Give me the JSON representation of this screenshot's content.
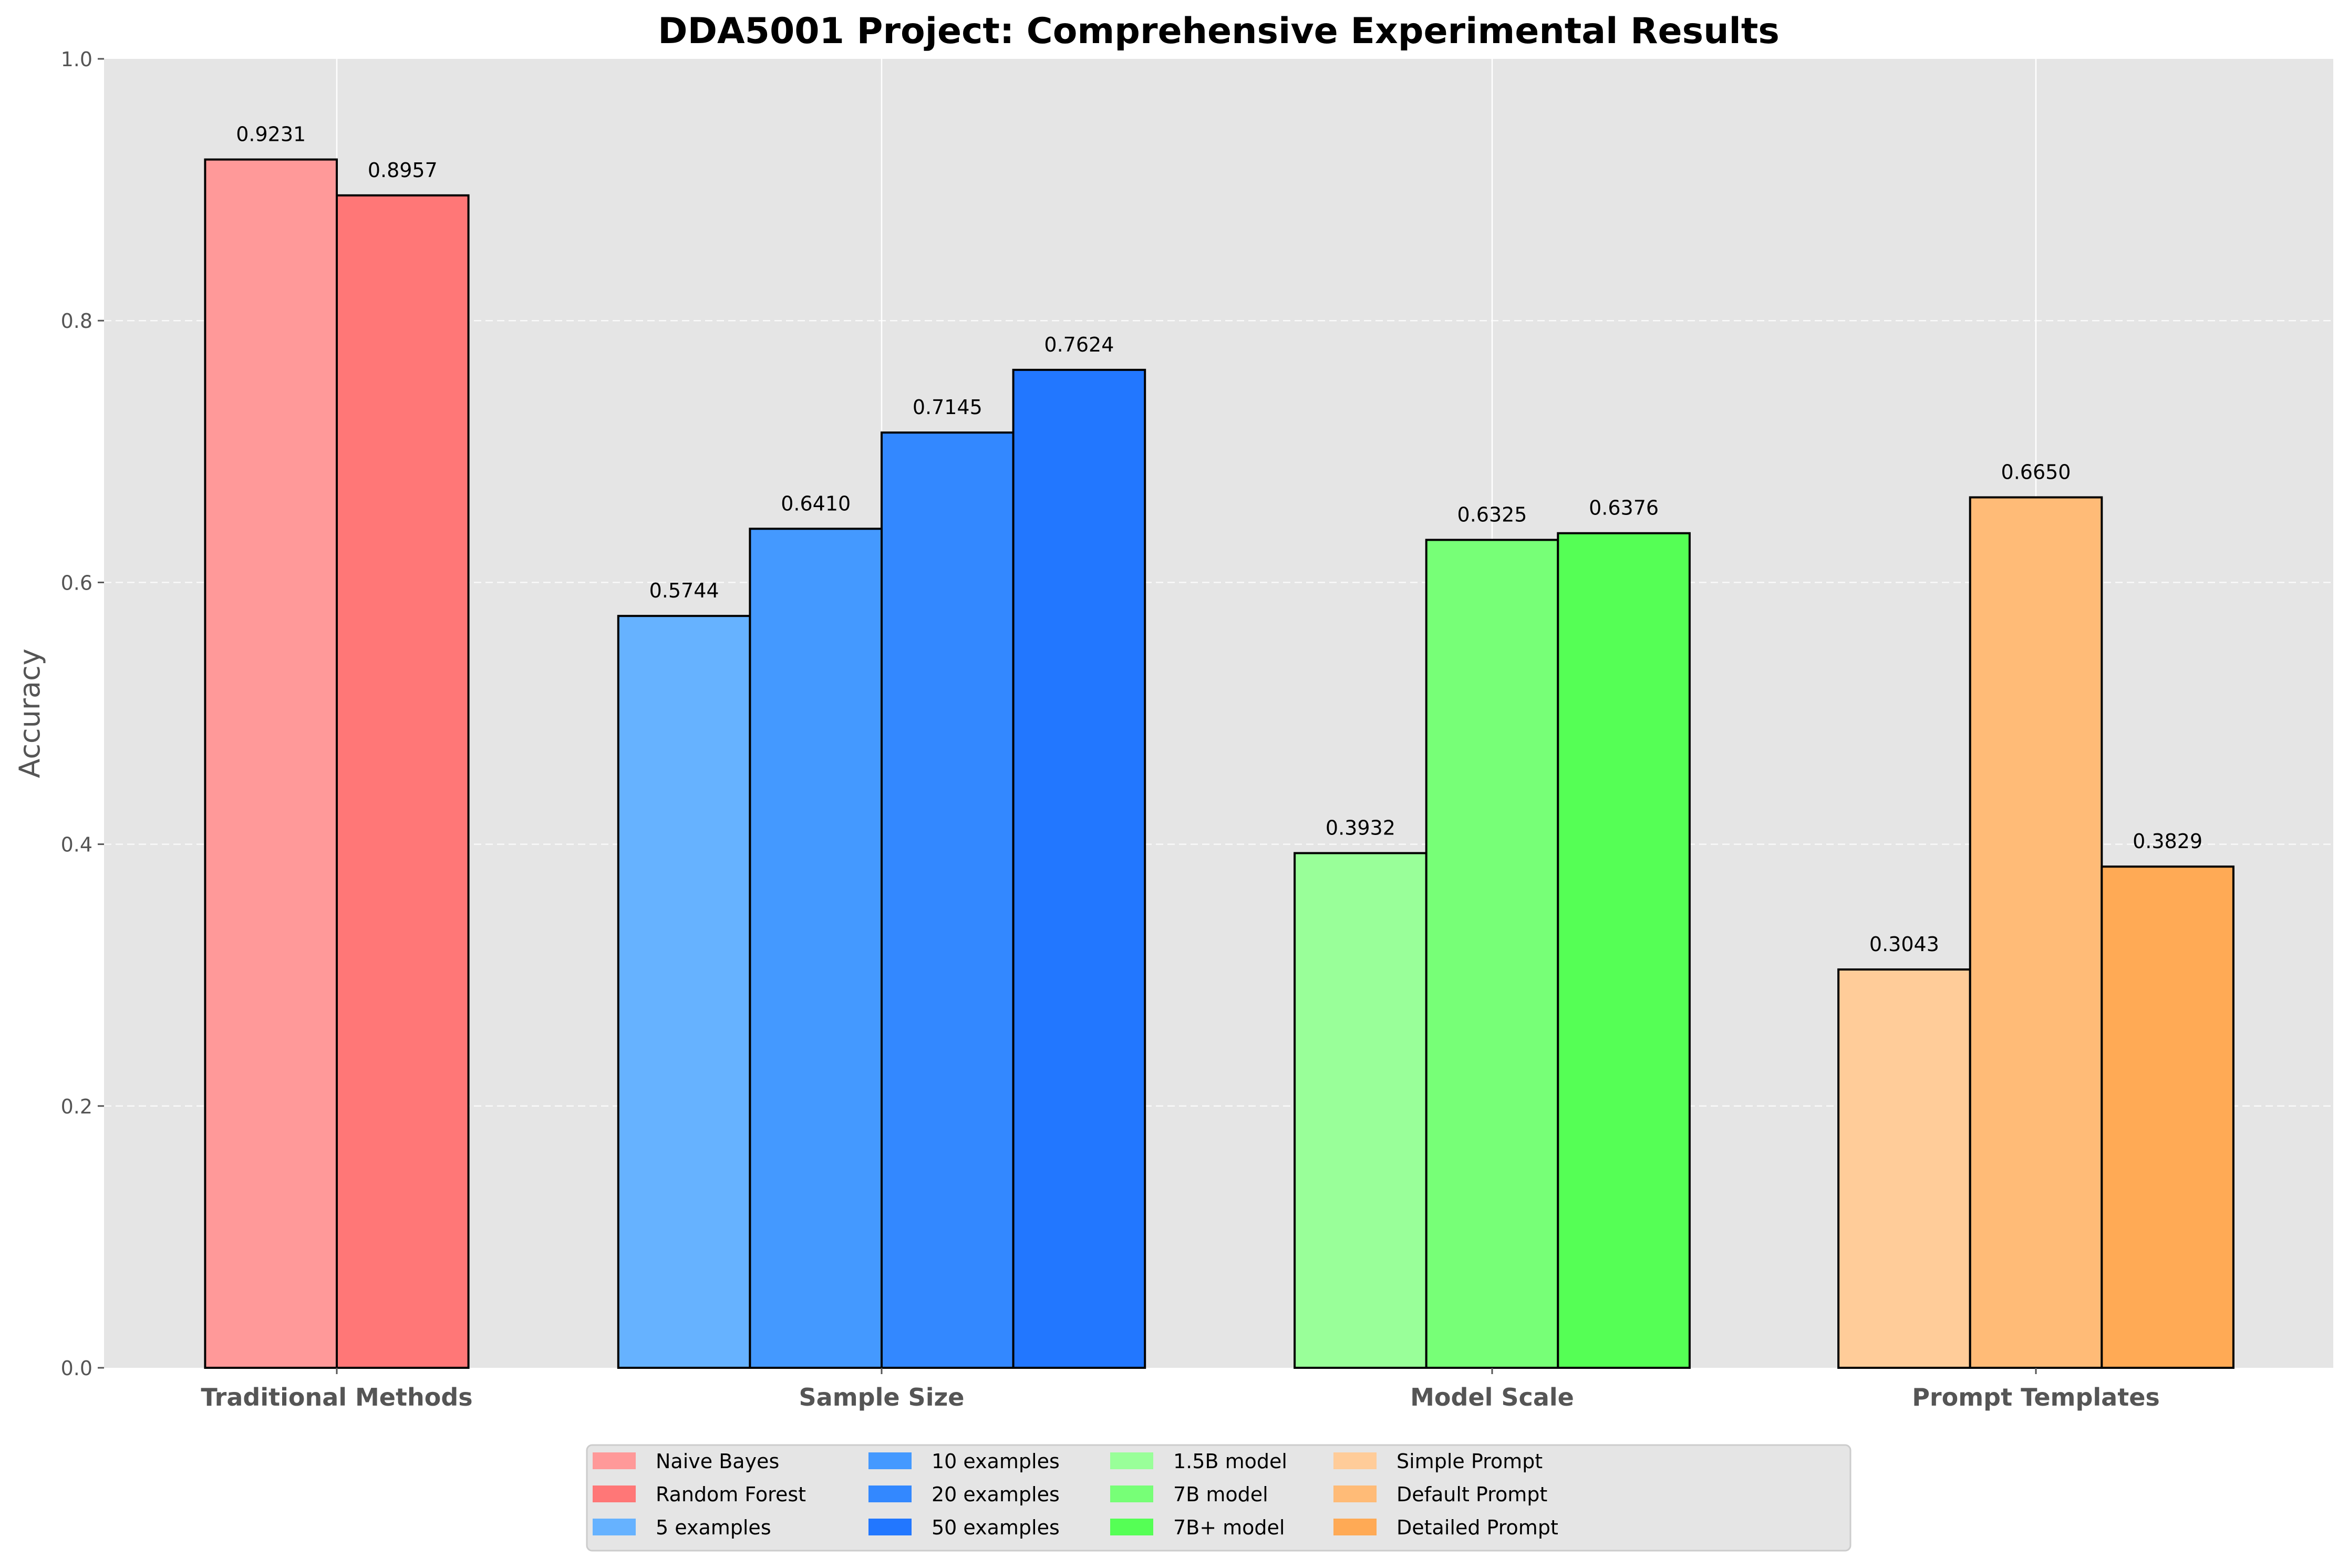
{
  "chart_data": {
    "type": "bar",
    "title": "DDA5001 Project: Comprehensive Experimental Results",
    "xlabel": "",
    "ylabel": "Accuracy",
    "ylim": [
      0,
      1.0
    ],
    "yticks": [
      "0.0",
      "0.2",
      "0.4",
      "0.6",
      "0.8",
      "1.0"
    ],
    "grid": true,
    "legend_position": "bottom-center",
    "groups": [
      {
        "category": "Traditional Methods",
        "bars": [
          {
            "name": "Naive Bayes",
            "value": 0.9231,
            "label": "0.9231",
            "color": "#FF9999"
          },
          {
            "name": "Random Forest",
            "value": 0.8957,
            "label": "0.8957",
            "color": "#FF7777"
          }
        ]
      },
      {
        "category": "Sample Size",
        "bars": [
          {
            "name": "5 examples",
            "value": 0.5744,
            "label": "0.5744",
            "color": "#66B2FF"
          },
          {
            "name": "10 examples",
            "value": 0.641,
            "label": "0.6410",
            "color": "#4499FF"
          },
          {
            "name": "20 examples",
            "value": 0.7145,
            "label": "0.7145",
            "color": "#3388FF"
          },
          {
            "name": "50 examples",
            "value": 0.7624,
            "label": "0.7624",
            "color": "#2277FF"
          }
        ]
      },
      {
        "category": "Model Scale",
        "bars": [
          {
            "name": "1.5B model",
            "value": 0.3932,
            "label": "0.3932",
            "color": "#99FF99"
          },
          {
            "name": "7B model",
            "value": 0.6325,
            "label": "0.6325",
            "color": "#77FF77"
          },
          {
            "name": "7B+ model",
            "value": 0.6376,
            "label": "0.6376",
            "color": "#55FF55"
          }
        ]
      },
      {
        "category": "Prompt Templates",
        "bars": [
          {
            "name": "Simple Prompt",
            "value": 0.3043,
            "label": "0.3043",
            "color": "#FFCC99"
          },
          {
            "name": "Default Prompt",
            "value": 0.665,
            "label": "0.6650",
            "color": "#FFBB77"
          },
          {
            "name": "Detailed Prompt",
            "value": 0.3829,
            "label": "0.3829",
            "color": "#FFAA55"
          }
        ]
      }
    ],
    "legend_order": [
      "Naive Bayes",
      "Random Forest",
      "5 examples",
      "10 examples",
      "20 examples",
      "50 examples",
      "1.5B model",
      "7B model",
      "7B+ model",
      "Simple Prompt",
      "Default Prompt",
      "Detailed Prompt"
    ]
  }
}
